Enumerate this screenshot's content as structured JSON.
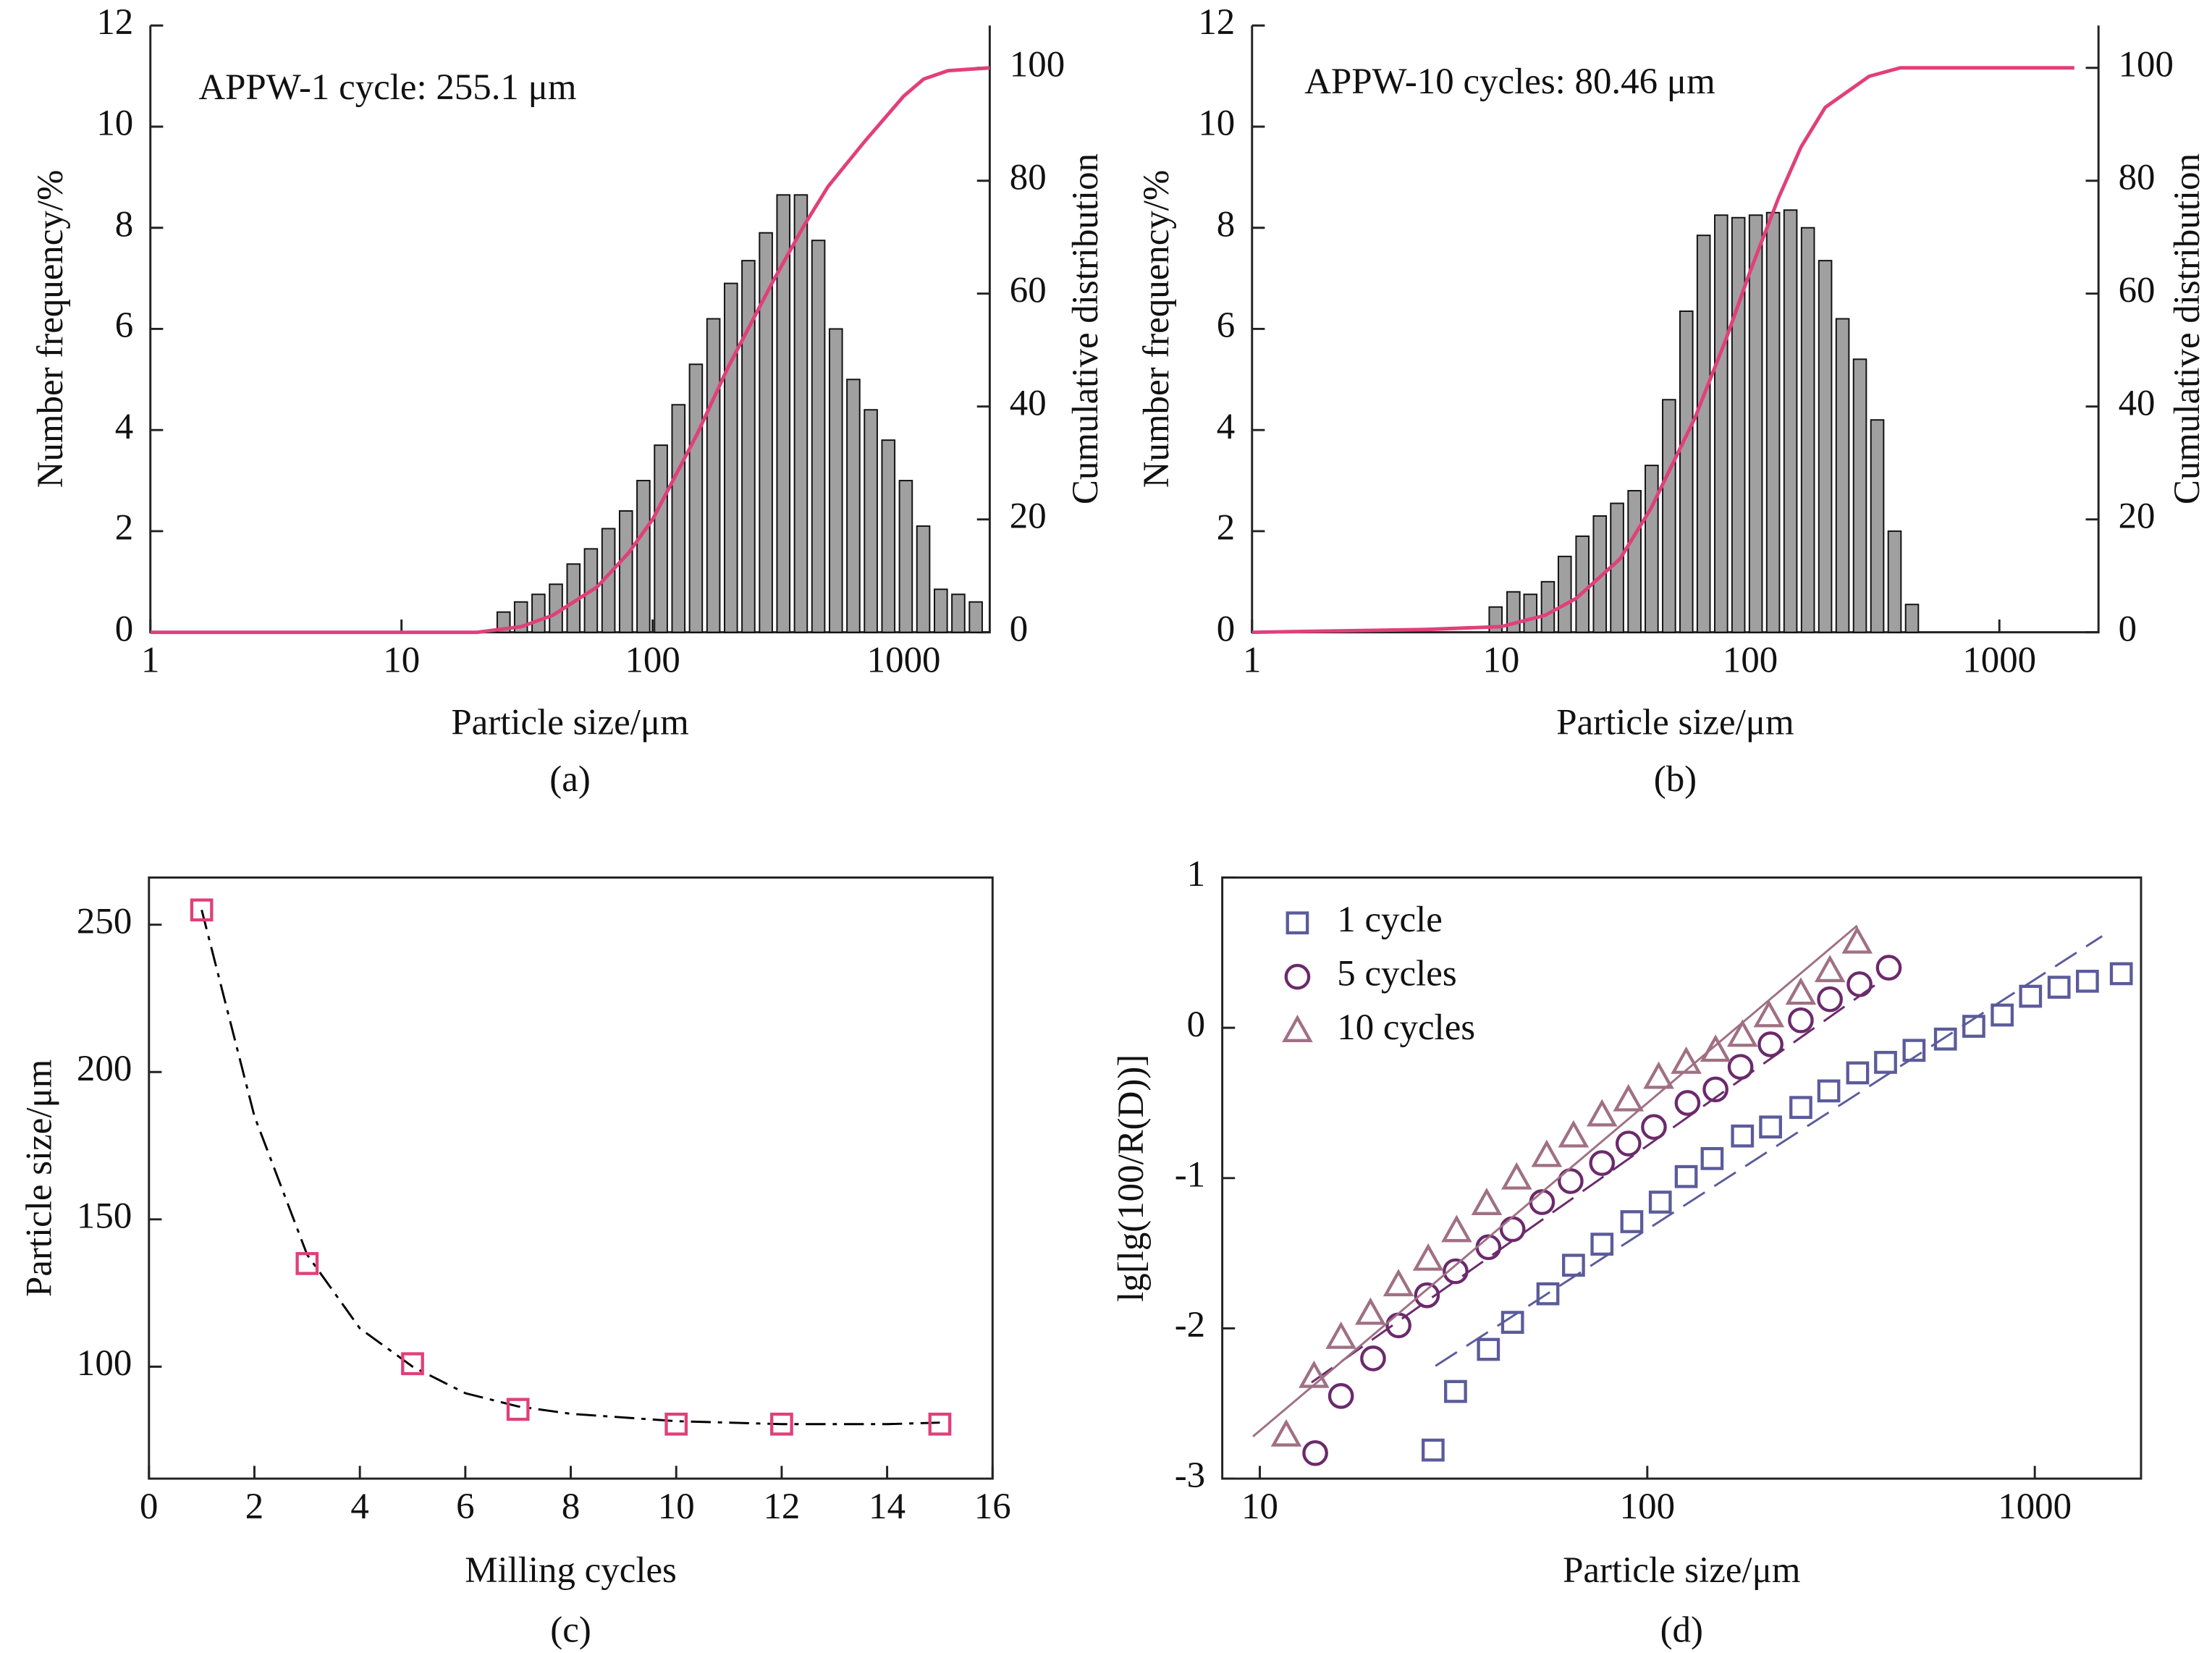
{
  "chart_data": [
    {
      "type": "bar",
      "caption": "(a)",
      "annotation": "APPW-1 cycle: 255.1 μm",
      "x_label": "Particle size/μm",
      "y_label": "Number frequency/%",
      "y2_label": "Cumulative distribution",
      "xscale": "log",
      "xlim": [
        1,
        2200
      ],
      "xticks": [
        1,
        10,
        100,
        1000
      ],
      "ylim": [
        0,
        12
      ],
      "yticks": [
        0,
        2,
        4,
        6,
        8,
        10,
        12
      ],
      "y2lim": [
        0,
        107.5
      ],
      "y2ticks": [
        0,
        20,
        40,
        60,
        80,
        100
      ],
      "color": "#a0a0a0",
      "x": [
        25.5,
        29.9,
        35.1,
        41.2,
        48.4,
        56.8,
        66.7,
        78.3,
        91.9,
        107.9,
        126.7,
        148.7,
        174.6,
        205,
        240.6,
        282.5,
        331.6,
        389.3,
        457,
        536.6,
        629.9,
        739.5,
        868.2,
        1019,
        1196,
        1405,
        1649,
        1936
      ],
      "values": [
        0.4,
        0.6,
        0.75,
        0.95,
        1.35,
        1.65,
        2.05,
        2.4,
        3.0,
        3.7,
        4.5,
        5.3,
        6.2,
        6.9,
        7.35,
        7.9,
        8.65,
        8.65,
        7.75,
        6.0,
        5.0,
        4.4,
        3.8,
        3.0,
        2.1,
        0.85,
        0.75,
        0.6
      ],
      "line": {
        "axis": "y2",
        "color": "#e0407a",
        "x": [
          1,
          10,
          20,
          30,
          40,
          60,
          80,
          100,
          150,
          200,
          300,
          400,
          500,
          700,
          1000,
          1200,
          1500,
          2200
        ],
        "values": [
          0,
          0,
          0,
          1,
          3,
          8,
          14,
          20,
          35,
          47,
          62,
          72,
          79,
          87,
          95,
          98,
          99.5,
          100
        ]
      }
    },
    {
      "type": "bar",
      "caption": "(b)",
      "annotation": "APPW-10 cycles: 80.46 μm",
      "x_label": "Particle size/μm",
      "y_label": "Number frequency/%",
      "y2_label": "Cumulative distribution",
      "xscale": "log",
      "xlim": [
        1,
        2500
      ],
      "xticks": [
        1,
        10,
        100,
        1000
      ],
      "ylim": [
        0,
        12
      ],
      "yticks": [
        0,
        2,
        4,
        6,
        8,
        10,
        12
      ],
      "y2lim": [
        0,
        107.5
      ],
      "y2ticks": [
        0,
        20,
        40,
        60,
        80,
        100
      ],
      "color": "#a0a0a0",
      "x": [
        9.5,
        11.2,
        13.1,
        15.4,
        18,
        21.2,
        24.9,
        29.2,
        34.3,
        40.2,
        47.2,
        55.4,
        65,
        76.4,
        89.6,
        105.2,
        123.5,
        145,
        170.3,
        199.9,
        234.7,
        275.5,
        323.5,
        379.8,
        445.9
      ],
      "values": [
        0.5,
        0.8,
        0.75,
        1.0,
        1.5,
        1.9,
        2.3,
        2.55,
        2.8,
        3.3,
        4.6,
        6.35,
        7.85,
        8.25,
        8.2,
        8.25,
        8.3,
        8.35,
        8.0,
        7.35,
        6.2,
        5.4,
        4.2,
        2.0,
        0.55
      ],
      "line": {
        "axis": "y2",
        "color": "#e0407a",
        "x": [
          1,
          5,
          10,
          15,
          20,
          30,
          40,
          60,
          80,
          100,
          130,
          160,
          200,
          300,
          400,
          500,
          1000,
          2000
        ],
        "values": [
          0,
          0.5,
          1,
          3,
          6,
          13,
          22,
          38,
          52,
          64,
          77,
          86,
          93,
          98.5,
          100,
          100,
          100,
          100
        ]
      }
    },
    {
      "type": "scatter",
      "caption": "(c)",
      "x_label": "Milling cycles",
      "y_label": "Particle size/μm",
      "xscale": "linear",
      "xlim": [
        0,
        16
      ],
      "xticks": [
        0,
        2,
        4,
        6,
        8,
        10,
        12,
        14,
        16
      ],
      "ylim": [
        62,
        266
      ],
      "yticks": [
        100,
        150,
        200,
        250
      ],
      "series": [
        {
          "color": "#e0407a",
          "marker": "square",
          "x": [
            1,
            3,
            5,
            7,
            10,
            12,
            15
          ],
          "values": [
            255,
            135,
            101,
            85.5,
            80.5,
            80.5,
            80.5
          ],
          "fit": {
            "style": "dash-dot",
            "color": "#000000",
            "x": [
              1,
              2,
              3,
              4,
              5,
              6,
              7,
              8,
              10,
              12,
              14,
              15
            ],
            "values": [
              255,
              185,
              138,
              113,
              100,
              91,
              86.5,
              84,
              81.5,
              80.5,
              80.5,
              81
            ]
          }
        }
      ]
    },
    {
      "type": "scatter",
      "caption": "(d)",
      "x_label": "Particle size/μm",
      "y_label": "lg[lg(100/R(D))]",
      "xscale": "log",
      "xlim": [
        8,
        1880
      ],
      "xticks": [
        10,
        100,
        1000
      ],
      "ylim": [
        -3,
        1
      ],
      "yticks": [
        -3,
        -2,
        -1,
        0,
        1
      ],
      "legend": "upper left",
      "series": [
        {
          "name": "1 cycle",
          "color": "#5b5b9b",
          "marker": "square",
          "x": [
            28.0,
            32.0,
            38.9,
            44.9,
            55.4,
            64.5,
            76.4,
            91.2,
            108,
            126,
            147,
            176,
            208,
            249,
            294,
            349,
            412,
            488,
            588,
            696,
            824,
            975,
            1155,
            1367,
            1672
          ],
          "values": [
            -2.81,
            -2.42,
            -2.14,
            -1.96,
            -1.77,
            -1.58,
            -1.44,
            -1.29,
            -1.16,
            -0.99,
            -0.87,
            -0.72,
            -0.66,
            -0.53,
            -0.42,
            -0.3,
            -0.23,
            -0.15,
            -0.075,
            0.01,
            0.085,
            0.21,
            0.27,
            0.31,
            0.36
          ],
          "fit": {
            "style": "dash",
            "color": "#5b5b9b",
            "x": [
              28.4,
              1492
            ],
            "values": [
              -2.25,
              0.61
            ]
          }
        },
        {
          "name": "5 cycles",
          "color": "#6b2a6b",
          "marker": "circle",
          "x": [
            13.9,
            16.2,
            19.6,
            22.8,
            27.0,
            32.0,
            38.9,
            44.9,
            53.5,
            63.4,
            76.4,
            89.4,
            104,
            127,
            150,
            174,
            208,
            249,
            296,
            353,
            420
          ],
          "values": [
            -2.83,
            -2.45,
            -2.2,
            -1.98,
            -1.78,
            -1.62,
            -1.46,
            -1.34,
            -1.16,
            -1.02,
            -0.9,
            -0.77,
            -0.66,
            -0.5,
            -0.41,
            -0.26,
            -0.11,
            0.05,
            0.19,
            0.29,
            0.4
          ],
          "fit": {
            "style": "dash",
            "color": "#6b2a6b",
            "x": [
              13.6,
              410
            ],
            "values": [
              -2.36,
              0.33
            ]
          }
        },
        {
          "name": "10 cycles",
          "color": "#a07084",
          "marker": "triangle",
          "x": [
            11.7,
            13.8,
            16.2,
            19.3,
            22.8,
            27.2,
            32.2,
            38.5,
            46.0,
            55.0,
            64.5,
            76.4,
            89.4,
            107,
            126,
            150,
            176,
            206,
            249,
            296,
            348
          ],
          "values": [
            -2.71,
            -2.32,
            -2.06,
            -1.9,
            -1.71,
            -1.54,
            -1.35,
            -1.17,
            -1.0,
            -0.85,
            -0.72,
            -0.58,
            -0.48,
            -0.33,
            -0.23,
            -0.15,
            -0.05,
            0.08,
            0.23,
            0.38,
            0.57
          ],
          "fit": {
            "style": "solid",
            "color": "#a07084",
            "x": [
              9.6,
              348
            ],
            "values": [
              -2.72,
              0.68
            ]
          }
        }
      ]
    }
  ]
}
